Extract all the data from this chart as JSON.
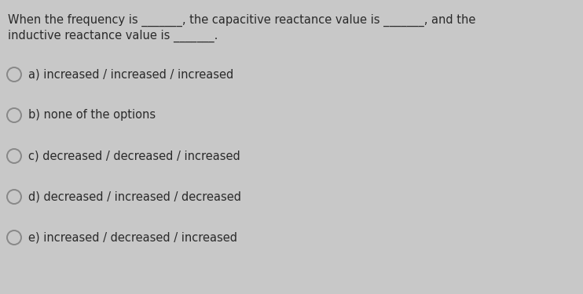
{
  "background_color": "#c8c8c8",
  "question_line1": "When the frequency is _______, the capacitive reactance value is _______, and the",
  "question_line2": "inductive reactance value is _______.",
  "options": [
    "a) increased / increased / increased",
    "b) none of the options",
    "c) decreased / decreased / increased",
    "d) decreased / increased / decreased",
    "e) increased / decreased / increased"
  ],
  "text_color": "#2a2a2a",
  "circle_edge_color": "#888888",
  "question_fontsize": 10.5,
  "option_fontsize": 10.5,
  "fig_width": 7.42,
  "fig_height": 3.75,
  "dpi": 100
}
